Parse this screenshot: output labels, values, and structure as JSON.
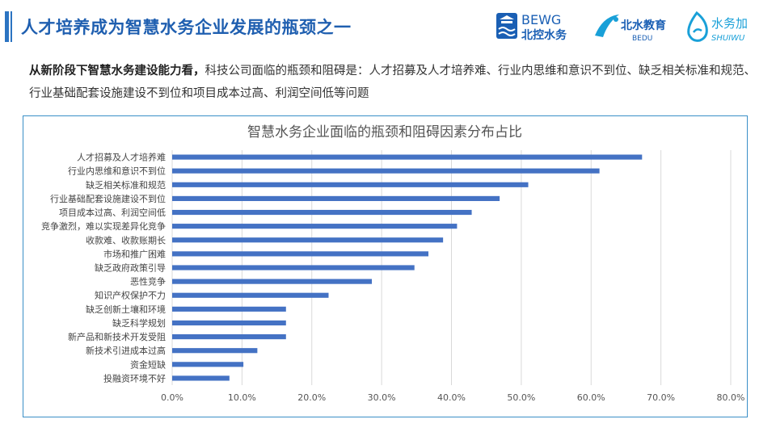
{
  "header": {
    "title": "人才培养成为智慧水务企业发展的瓶颈之一",
    "logos": [
      {
        "name": "bewg",
        "line1": "BEWG",
        "line2": "北控水务"
      },
      {
        "name": "bedu",
        "line1": "北水教育",
        "line2": "BEDU"
      },
      {
        "name": "shuiwu",
        "line1": "水务加",
        "line2": "SHUIWU"
      }
    ]
  },
  "intro": {
    "lead": "从新阶段下智慧水务建设能力看，",
    "body": "科技公司面临的瓶颈和阻碍是：人才招募及人才培养难、行业内思维和意识不到位、缺乏相关标准和规范、行业基础配套设施建设不到位和项目成本过高、利润空间低等问题"
  },
  "colors": {
    "accent": "#2c74c2",
    "bar": "#4472c4",
    "border": "#3a8fc7"
  },
  "chart_data": {
    "type": "bar",
    "orientation": "horizontal",
    "title": "智慧水务企业面临的瓶颈和阻碍因素分布占比",
    "categories": [
      "人才招募及人才培养难",
      "行业内思维和意识不到位",
      "缺乏相关标准和规范",
      "行业基础配套设施建设不到位",
      "项目成本过高、利润空间低",
      "竞争激烈，难以实现差异化竞争",
      "收款难、收款账期长",
      "市场和推广困难",
      "缺乏政府政策引导",
      "恶性竞争",
      "知识产权保护不力",
      "缺乏创新土壤和环境",
      "缺乏科学规划",
      "新产品和新技术开发受阻",
      "新技术引进成本过高",
      "资金短缺",
      "投融资环境不好"
    ],
    "values": [
      67.3,
      61.2,
      51.0,
      46.9,
      42.9,
      40.8,
      38.8,
      36.7,
      34.7,
      28.6,
      22.4,
      16.3,
      16.3,
      16.3,
      12.2,
      10.2,
      8.2
    ],
    "xlim": [
      0,
      80
    ],
    "xticks": [
      "0.0%",
      "10.0%",
      "20.0%",
      "30.0%",
      "40.0%",
      "50.0%",
      "60.0%",
      "70.0%",
      "80.0%"
    ],
    "grid": true,
    "legend": "none"
  }
}
